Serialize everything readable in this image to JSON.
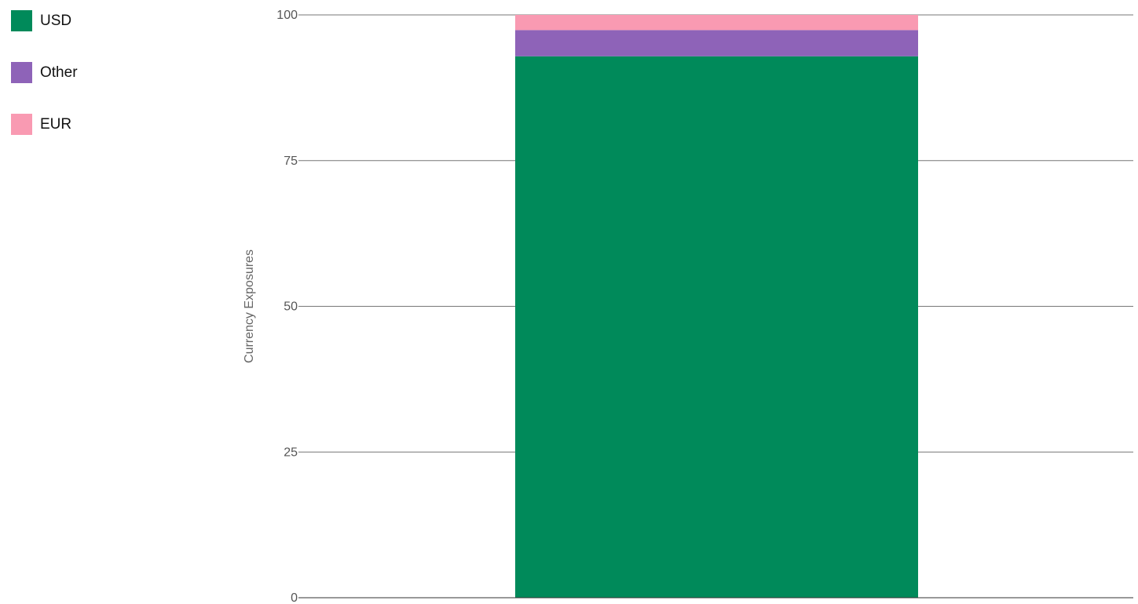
{
  "chart_data": {
    "type": "bar",
    "stacked": true,
    "categories": [
      ""
    ],
    "series": [
      {
        "name": "USD",
        "values": [
          92.9
        ],
        "color": "#008a5a"
      },
      {
        "name": "Other",
        "values": [
          4.5
        ],
        "color": "#8e63b8"
      },
      {
        "name": "EUR",
        "values": [
          2.6
        ],
        "color": "#f99ab2"
      }
    ],
    "title": "",
    "xlabel": "",
    "ylabel": "Currency Exposures",
    "ylim": [
      0,
      100
    ],
    "yticks": [
      "0",
      "25",
      "50",
      "75",
      "100"
    ],
    "grid": true,
    "legend_position": "top-left"
  }
}
